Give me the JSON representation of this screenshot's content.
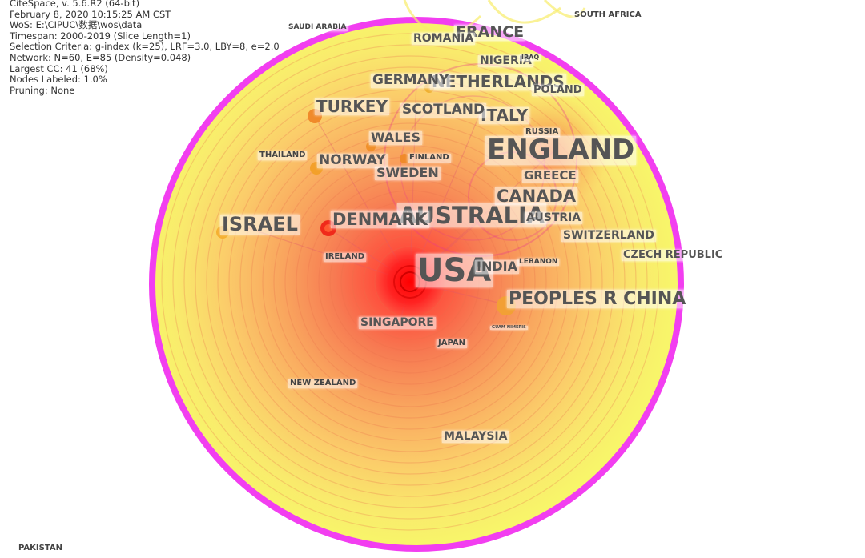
{
  "info": {
    "lines": [
      "CiteSpace, v. 5.6.R2 (64-bit)",
      "February 8, 2020 10:15:25 AM CST",
      "WoS: E:\\CIPUC\\数据\\wos\\data",
      "Timespan: 2000-2019 (Slice Length=1)",
      "Selection Criteria: g-index (k=25), LRF=3.0, LBY=8, e=2.0",
      "Network: N=60, E=85 (Density=0.048)",
      "Largest CC: 41 (68%)",
      "Nodes Labeled: 1.0%",
      "Pruning: None"
    ]
  },
  "colors": {
    "ring": "#f23ef0",
    "disk_outer": "#f8f56a",
    "disk_mid": "#fbcf6a",
    "core": "#ff1e1e",
    "label_text": "#555555",
    "label_bg": "#ffffff"
  },
  "nodes": [
    {
      "key": "usa",
      "name": "USA"
    },
    {
      "key": "australia",
      "name": "AUSTRALIA"
    },
    {
      "key": "england",
      "name": "ENGLAND"
    },
    {
      "key": "peoples-r-china",
      "name": "PEOPLES R CHINA"
    },
    {
      "key": "denmark",
      "name": "DENMARK"
    },
    {
      "key": "canada",
      "name": "CANADA"
    },
    {
      "key": "israel",
      "name": "ISRAEL"
    },
    {
      "key": "france",
      "name": "FRANCE"
    },
    {
      "key": "netherlands",
      "name": "NETHERLANDS"
    },
    {
      "key": "germany",
      "name": "GERMANY"
    },
    {
      "key": "italy",
      "name": "ITALY"
    },
    {
      "key": "turkey",
      "name": "TURKEY"
    },
    {
      "key": "scotland",
      "name": "SCOTLAND"
    },
    {
      "key": "wales",
      "name": "WALES"
    },
    {
      "key": "norway",
      "name": "NORWAY"
    },
    {
      "key": "sweden",
      "name": "SWEDEN"
    },
    {
      "key": "greece",
      "name": "GREECE"
    },
    {
      "key": "switzerland",
      "name": "SWITZERLAND"
    },
    {
      "key": "czech-republic",
      "name": "CZECH REPUBLIC"
    },
    {
      "key": "india",
      "name": "INDIA"
    },
    {
      "key": "austria",
      "name": "AUSTRIA"
    },
    {
      "key": "singapore",
      "name": "SINGAPORE"
    },
    {
      "key": "malaysia",
      "name": "MALAYSIA"
    },
    {
      "key": "romania",
      "name": "ROMANIA"
    },
    {
      "key": "nigeria",
      "name": "NIGERIA"
    },
    {
      "key": "poland",
      "name": "POLAND"
    },
    {
      "key": "south-africa",
      "name": "SOUTH AFRICA"
    },
    {
      "key": "saudi-arabia",
      "name": "SAUDI ARABIA"
    },
    {
      "key": "iraq",
      "name": "IRAQ"
    },
    {
      "key": "russia",
      "name": "RUSSIA"
    },
    {
      "key": "thailand",
      "name": "THAILAND"
    },
    {
      "key": "finland",
      "name": "FINLAND"
    },
    {
      "key": "ireland",
      "name": "IRELAND"
    },
    {
      "key": "lebanon",
      "name": "LEBANON"
    },
    {
      "key": "japan",
      "name": "JAPAN"
    },
    {
      "key": "new-zealand",
      "name": "NEW ZEALAND"
    },
    {
      "key": "pakistan",
      "name": "PAKISTAN"
    },
    {
      "key": "guam",
      "name": "GUAM-NIMERIS"
    }
  ]
}
